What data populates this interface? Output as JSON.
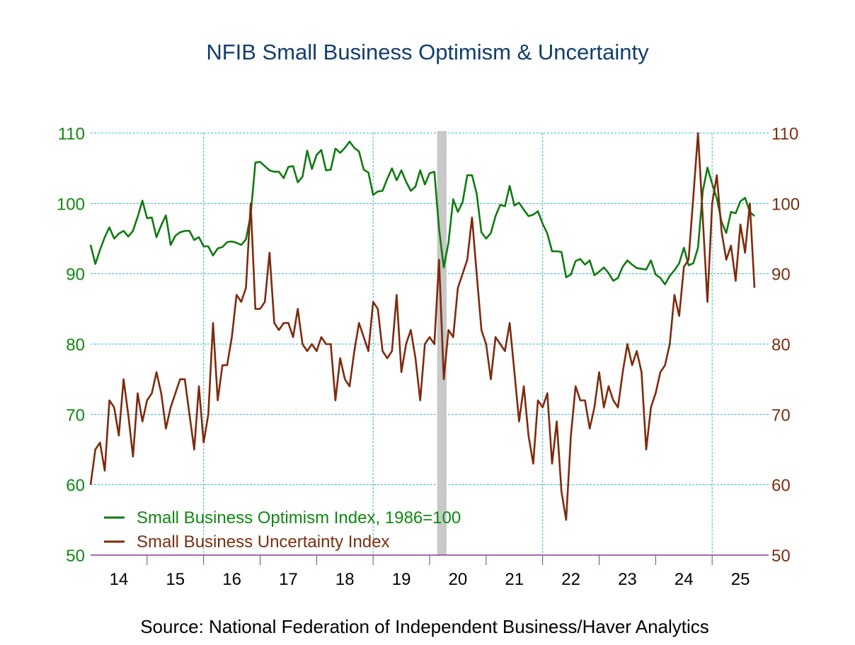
{
  "chart_data": {
    "type": "line",
    "title": "NFIB Small Business Optimism & Uncertainty",
    "source": "Source:  National Federation of Independent Business/Haver Analytics",
    "start": "2014-01",
    "frequency": "monthly",
    "x_tick_labels": [
      "14",
      "15",
      "16",
      "17",
      "18",
      "19",
      "20",
      "21",
      "22",
      "23",
      "24",
      "25"
    ],
    "left_axis": {
      "ylim": [
        50,
        110
      ],
      "ticks": [
        50,
        60,
        70,
        80,
        90,
        100,
        110
      ],
      "color": "#118811"
    },
    "right_axis": {
      "ylim": [
        50,
        110
      ],
      "ticks": [
        50,
        60,
        70,
        80,
        90,
        100,
        110
      ],
      "color": "#7a3010"
    },
    "grid": true,
    "legend_placement": "bottom-left",
    "recession_shading": {
      "from": "2020-02",
      "to": "2020-04",
      "color": "#c8c8c8"
    },
    "series": [
      {
        "name": "Small Business Optimism Index, 1986=100",
        "axis": "left",
        "color": "#0f7a0f",
        "values": [
          94.1,
          91.4,
          93.4,
          95.2,
          96.6,
          95.0,
          95.7,
          96.1,
          95.3,
          96.1,
          98.1,
          100.4,
          97.9,
          98.0,
          95.2,
          96.9,
          98.3,
          94.1,
          95.4,
          95.9,
          96.1,
          96.1,
          94.8,
          95.2,
          93.9,
          93.9,
          92.6,
          93.6,
          93.8,
          94.5,
          94.6,
          94.4,
          94.1,
          94.9,
          98.4,
          105.8,
          105.9,
          105.3,
          104.7,
          104.5,
          104.5,
          103.6,
          105.2,
          105.3,
          103.0,
          103.8,
          107.5,
          104.9,
          106.9,
          107.6,
          104.7,
          104.8,
          107.8,
          107.2,
          107.9,
          108.8,
          107.9,
          107.4,
          104.8,
          104.4,
          101.2,
          101.7,
          101.8,
          103.5,
          105.0,
          103.3,
          104.7,
          103.1,
          101.8,
          102.4,
          104.7,
          102.7,
          104.3,
          104.5,
          96.4,
          90.9,
          94.4,
          100.6,
          98.8,
          100.2,
          104.0,
          104.0,
          101.4,
          95.9,
          95.0,
          95.8,
          98.2,
          99.8,
          99.6,
          102.5,
          99.7,
          100.1,
          99.1,
          98.2,
          98.4,
          98.9,
          97.1,
          95.7,
          93.2,
          93.2,
          93.1,
          89.5,
          89.9,
          91.8,
          92.1,
          91.3,
          91.9,
          89.8,
          90.3,
          90.9,
          90.1,
          89.0,
          89.4,
          91.0,
          91.9,
          91.3,
          90.8,
          90.7,
          90.6,
          91.9,
          89.9,
          89.4,
          88.5,
          89.7,
          90.5,
          91.5,
          93.7,
          91.2,
          91.5,
          93.7,
          101.7,
          105.1,
          102.8,
          100.7,
          97.4,
          95.8,
          98.8,
          98.6,
          100.3,
          100.8,
          98.8,
          98.2
        ]
      },
      {
        "name": "Small Business Uncertainty Index",
        "axis": "right",
        "color": "#7e2a0c",
        "values": [
          60,
          65,
          66,
          62,
          72,
          71,
          67,
          75,
          70,
          64,
          73,
          69,
          72,
          73,
          76,
          73,
          68,
          71,
          73,
          75,
          75,
          70,
          65,
          74,
          66,
          70,
          83,
          72,
          77,
          77,
          81,
          87,
          86,
          88,
          100,
          85,
          85,
          86,
          93,
          83,
          82,
          83,
          83,
          81,
          85,
          80,
          79,
          80,
          79,
          81,
          80,
          80,
          72,
          78,
          75,
          74,
          79,
          83,
          81,
          79,
          86,
          85,
          79,
          78,
          79,
          87,
          76,
          80,
          82,
          78,
          72,
          80,
          81,
          80,
          92,
          75,
          82,
          81,
          88,
          90,
          92,
          98,
          90,
          82,
          80,
          75,
          81,
          80,
          79,
          83,
          76,
          69,
          74,
          67,
          63,
          72,
          71,
          73,
          63,
          69,
          59,
          55,
          67,
          74,
          72,
          72,
          68,
          71,
          76,
          71,
          74,
          72,
          71,
          76,
          80,
          77,
          79,
          76,
          65,
          71,
          73,
          76,
          77,
          80,
          87,
          84,
          91,
          92,
          101,
          110,
          98,
          86,
          100,
          104,
          96,
          92,
          94,
          89,
          97,
          93,
          100,
          88
        ]
      }
    ]
  }
}
